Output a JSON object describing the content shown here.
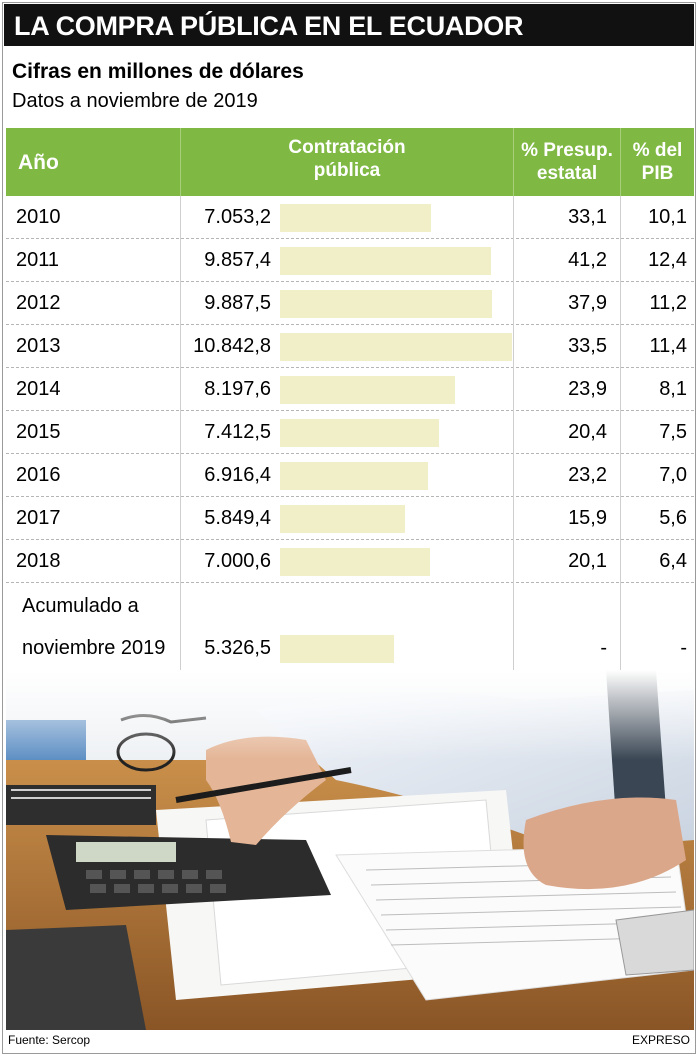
{
  "title": "LA COMPRA PÚBLICA EN EL ECUADOR",
  "subtitle": "Cifras en millones de dólares",
  "subtitle2": "Datos a noviembre de 2019",
  "table": {
    "headers": {
      "year": "Año",
      "contratacion_l1": "Contratación",
      "contratacion_l2": "pública",
      "presup_l1": "% Presup.",
      "presup_l2": "estatal",
      "pib_l1": "% del",
      "pib_l2": "PIB"
    },
    "rows": [
      {
        "year": "2010",
        "value": "7.053,2",
        "presup": "33,1",
        "pib": "10,1"
      },
      {
        "year": "2011",
        "value": "9.857,4",
        "presup": "41,2",
        "pib": "12,4"
      },
      {
        "year": "2012",
        "value": "9.887,5",
        "presup": "37,9",
        "pib": "11,2"
      },
      {
        "year": "2013",
        "value": "10.842,8",
        "presup": "33,5",
        "pib": "11,4"
      },
      {
        "year": "2014",
        "value": "8.197,6",
        "presup": "23,9",
        "pib": "8,1"
      },
      {
        "year": "2015",
        "value": "7.412,5",
        "presup": "20,4",
        "pib": "7,5"
      },
      {
        "year": "2016",
        "value": "6.916,4",
        "presup": "23,2",
        "pib": "7,0"
      },
      {
        "year": "2017",
        "value": "5.849,4",
        "presup": "15,9",
        "pib": "5,6"
      },
      {
        "year": "2018",
        "value": "7.000,6",
        "presup": "20,1",
        "pib": "6,4"
      }
    ],
    "accumulated": {
      "label_l1": "Acumulado a",
      "label_l2": "noviembre 2019",
      "value": "5.326,5",
      "presup": "-",
      "pib": "-"
    }
  },
  "chart_data": {
    "type": "bar",
    "categories": [
      "2010",
      "2011",
      "2012",
      "2013",
      "2014",
      "2015",
      "2016",
      "2017",
      "2018",
      "Acumulado a noviembre 2019"
    ],
    "values": [
      7053.2,
      9857.4,
      9887.5,
      10842.8,
      8197.6,
      7412.5,
      6916.4,
      5849.4,
      7000.6,
      5326.5
    ],
    "title": "LA COMPRA PÚBLICA EN EL ECUADOR",
    "subtitle": "Cifras en millones de dólares",
    "ylim": [
      0,
      10842.8
    ],
    "bar_color": "#f1efc8",
    "header_color": "#7fb843"
  },
  "footer": {
    "source": "Fuente: Sercop",
    "brand": "EXPRESO"
  }
}
